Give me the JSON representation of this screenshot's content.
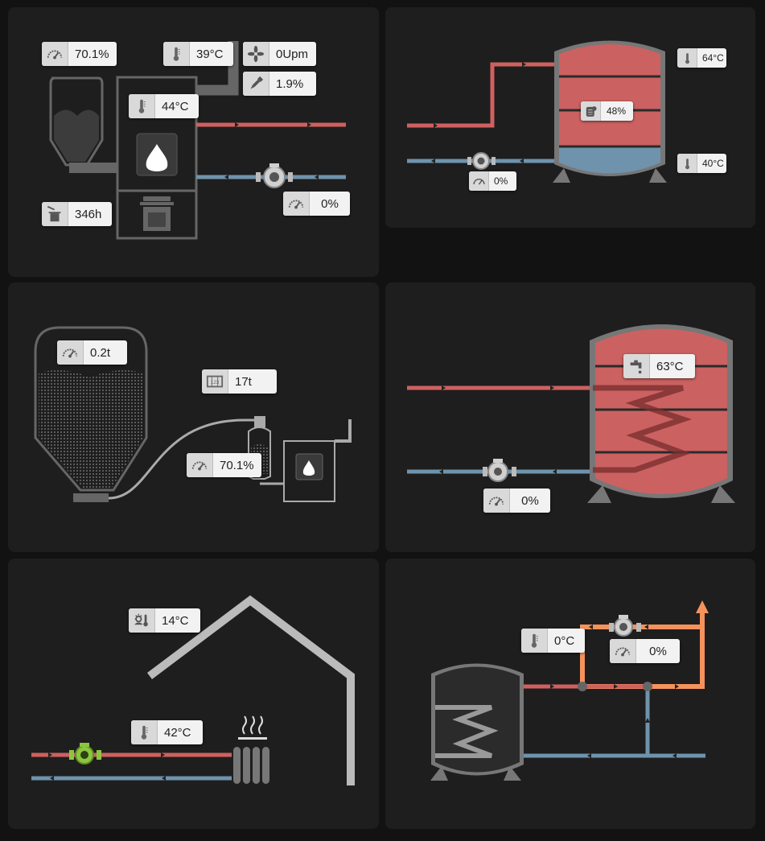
{
  "boiler": {
    "modulation": "70.1%",
    "flue_temp": "39°C",
    "fan_speed": "0Upm",
    "o2": "1.9%",
    "boiler_temp": "44°C",
    "pump": "0%",
    "ash_hours": "346h"
  },
  "buffer": {
    "top_temp": "64°C",
    "charge": "48%",
    "bottom_temp": "40°C",
    "pump": "0%"
  },
  "silo": {
    "level": "0.2t",
    "consumption": "17t",
    "modulation": "70.1%"
  },
  "dhw": {
    "temp": "63°C",
    "pump": "0%"
  },
  "heating_circuit": {
    "outdoor_temp": "14°C",
    "flow_temp": "42°C"
  },
  "solar": {
    "temp": "0°C",
    "pump": "0%"
  },
  "colors": {
    "background": "#121212",
    "panel": "#1e1e1e",
    "supply": "#d06060",
    "return": "#6f93ad",
    "solar": "#f5925c",
    "tank": "#cc6161",
    "pump_active": "#8cc63f"
  }
}
